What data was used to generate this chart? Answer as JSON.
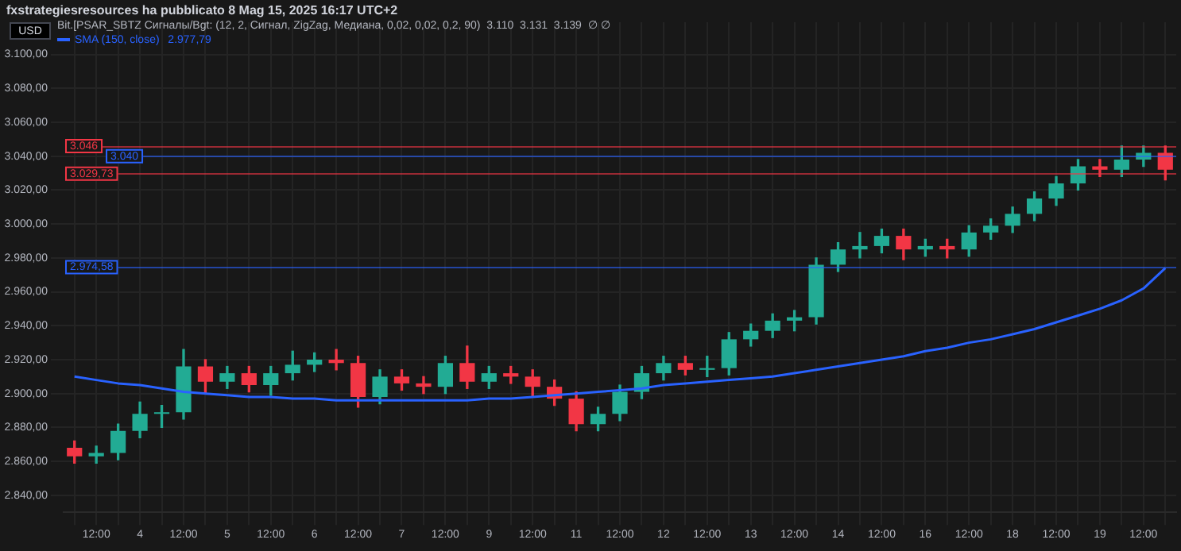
{
  "chart_data": {
    "type": "candlestick",
    "title": "fxstrategiesresources ha pubblicato 8 Mag 15, 2025 16:17 UTC+2",
    "annotations": [
      "USD",
      "Bit.[PSAR_SBTZ Сигналы/Bgt: (12, 2, Сигнал, ZigZag, Медиана, 0,02, 0,02, 0,2, 90)  3.110  3.131  3.139  ∅ ∅",
      "2.977,79"
    ],
    "ref_lines": [
      {
        "axis": "y",
        "value": 3046,
        "label": "3.046",
        "color": "#f23645"
      },
      {
        "axis": "y",
        "value": 3040,
        "label": "3.040",
        "color": "#2962ff"
      },
      {
        "axis": "y",
        "value": 3029.73,
        "label": "3.029,73",
        "color": "#f23645"
      },
      {
        "axis": "y",
        "value": 2974.58,
        "label": "2.974,58",
        "color": "#2962ff"
      }
    ],
    "categories": [
      null,
      "12:00",
      null,
      "4",
      null,
      "12:00",
      null,
      "5",
      null,
      "12:00",
      null,
      "6",
      null,
      "12:00",
      null,
      "7",
      null,
      "12:00",
      null,
      "9",
      null,
      "12:00",
      null,
      "11",
      null,
      "12:00",
      null,
      "12",
      null,
      "12:00",
      null,
      "13",
      null,
      "12:00",
      null,
      "14",
      null,
      "12:00",
      null,
      "16",
      null,
      "12:00",
      null,
      "18",
      null,
      "12:00",
      null,
      "19",
      null,
      "12:00",
      null
    ],
    "series": [
      {
        "type": "line",
        "name": "SMA (150, close)",
        "color": "#2962ff",
        "values": [
          2910,
          2908,
          2906,
          2905,
          2903,
          2901,
          2900,
          2899,
          2898,
          2898,
          2897,
          2897,
          2896,
          2896,
          2896,
          2896,
          2896,
          2896,
          2896,
          2897,
          2897,
          2898,
          2899,
          2900,
          2901,
          2902,
          2903,
          2905,
          2906,
          2907,
          2908,
          2909,
          2910,
          2912,
          2914,
          2916,
          2918,
          2920,
          2922,
          2925,
          2927,
          2930,
          2932,
          2935,
          2938,
          2942,
          2946,
          2950,
          2955,
          2962,
          2974
        ]
      },
      {
        "type": "candlestick",
        "colors": [
          "#f23645",
          "#22ab94",
          "#22ab94",
          "#22ab94",
          "#22ab94",
          "#22ab94",
          "#f23645",
          "#22ab94",
          "#f23645",
          "#22ab94",
          "#22ab94",
          "#22ab94",
          "#f23645",
          "#f23645",
          "#22ab94",
          "#f23645",
          "#f23645",
          "#22ab94",
          "#f23645",
          "#22ab94",
          "#f23645",
          "#f23645",
          "#f23645",
          "#f23645",
          "#22ab94",
          "#22ab94",
          "#22ab94",
          "#22ab94",
          "#f23645",
          "#22ab94",
          "#22ab94",
          "#22ab94",
          "#22ab94",
          "#22ab94",
          "#22ab94",
          "#22ab94",
          "#22ab94",
          "#22ab94",
          "#f23645",
          "#22ab94",
          "#f23645",
          "#22ab94",
          "#22ab94",
          "#22ab94",
          "#22ab94",
          "#22ab94",
          "#22ab94",
          "#f23645",
          "#22ab94",
          "#22ab94",
          "#f23645"
        ],
        "ohlc": [
          [
            2868,
            2872,
            2859,
            2863
          ],
          [
            2863,
            2869,
            2859,
            2865
          ],
          [
            2865,
            2882,
            2861,
            2878
          ],
          [
            2878,
            2895,
            2874,
            2888
          ],
          [
            2888,
            2893,
            2880,
            2889
          ],
          [
            2889,
            2926,
            2885,
            2916
          ],
          [
            2916,
            2920,
            2900,
            2907
          ],
          [
            2907,
            2916,
            2903,
            2912
          ],
          [
            2912,
            2916,
            2901,
            2905
          ],
          [
            2905,
            2916,
            2899,
            2912
          ],
          [
            2912,
            2925,
            2908,
            2917
          ],
          [
            2917,
            2924,
            2913,
            2920
          ],
          [
            2920,
            2926,
            2914,
            2918
          ],
          [
            2918,
            2922,
            2892,
            2898
          ],
          [
            2898,
            2914,
            2894,
            2910
          ],
          [
            2910,
            2914,
            2902,
            2906
          ],
          [
            2906,
            2910,
            2900,
            2904
          ],
          [
            2904,
            2922,
            2900,
            2918
          ],
          [
            2918,
            2928,
            2903,
            2907
          ],
          [
            2907,
            2916,
            2903,
            2912
          ],
          [
            2912,
            2916,
            2906,
            2910
          ],
          [
            2910,
            2914,
            2898,
            2904
          ],
          [
            2904,
            2908,
            2893,
            2897
          ],
          [
            2897,
            2901,
            2878,
            2882
          ],
          [
            2882,
            2892,
            2878,
            2888
          ],
          [
            2888,
            2905,
            2884,
            2901
          ],
          [
            2901,
            2916,
            2897,
            2912
          ],
          [
            2912,
            2922,
            2908,
            2918
          ],
          [
            2918,
            2922,
            2911,
            2914
          ],
          [
            2914,
            2922,
            2910,
            2915
          ],
          [
            2915,
            2936,
            2911,
            2932
          ],
          [
            2932,
            2941,
            2928,
            2937
          ],
          [
            2937,
            2947,
            2933,
            2943
          ],
          [
            2943,
            2949,
            2937,
            2945
          ],
          [
            2945,
            2980,
            2941,
            2976
          ],
          [
            2976,
            2989,
            2972,
            2985
          ],
          [
            2985,
            2995,
            2980,
            2987
          ],
          [
            2987,
            2997,
            2983,
            2993
          ],
          [
            2993,
            2997,
            2979,
            2985
          ],
          [
            2985,
            2991,
            2981,
            2987
          ],
          [
            2987,
            2991,
            2980,
            2985
          ],
          [
            2985,
            2999,
            2981,
            2995
          ],
          [
            2995,
            3003,
            2991,
            2999
          ],
          [
            2999,
            3010,
            2995,
            3006
          ],
          [
            3006,
            3019,
            3002,
            3015
          ],
          [
            3015,
            3028,
            3011,
            3024
          ],
          [
            3024,
            3038,
            3020,
            3034
          ],
          [
            3034,
            3038,
            3028,
            3032
          ],
          [
            3032,
            3046,
            3028,
            3038
          ],
          [
            3038,
            3046,
            3034,
            3042
          ],
          [
            3042,
            3046,
            3026,
            3032
          ]
        ]
      }
    ],
    "ylim": [
      2830,
      3119
    ],
    "yticks": [
      {
        "value": 2840,
        "label": "2.840,00"
      },
      {
        "value": 2860,
        "label": "2.860,00"
      },
      {
        "value": 2880,
        "label": "2.880,00"
      },
      {
        "value": 2900,
        "label": "2.900,00"
      },
      {
        "value": 2920,
        "label": "2.920,00"
      },
      {
        "value": 2940,
        "label": "2.940,00"
      },
      {
        "value": 2960,
        "label": "2.960,00"
      },
      {
        "value": 2980,
        "label": "2.980,00"
      },
      {
        "value": 3000,
        "label": "3.000,00"
      },
      {
        "value": 3020,
        "label": "3.020,00"
      },
      {
        "value": 3040,
        "label": "3.040,00"
      },
      {
        "value": 3060,
        "label": "3.060,00"
      },
      {
        "value": 3080,
        "label": "3.080,00"
      },
      {
        "value": 3100,
        "label": "3.100,00"
      }
    ],
    "grid": true,
    "legend": "top left"
  }
}
